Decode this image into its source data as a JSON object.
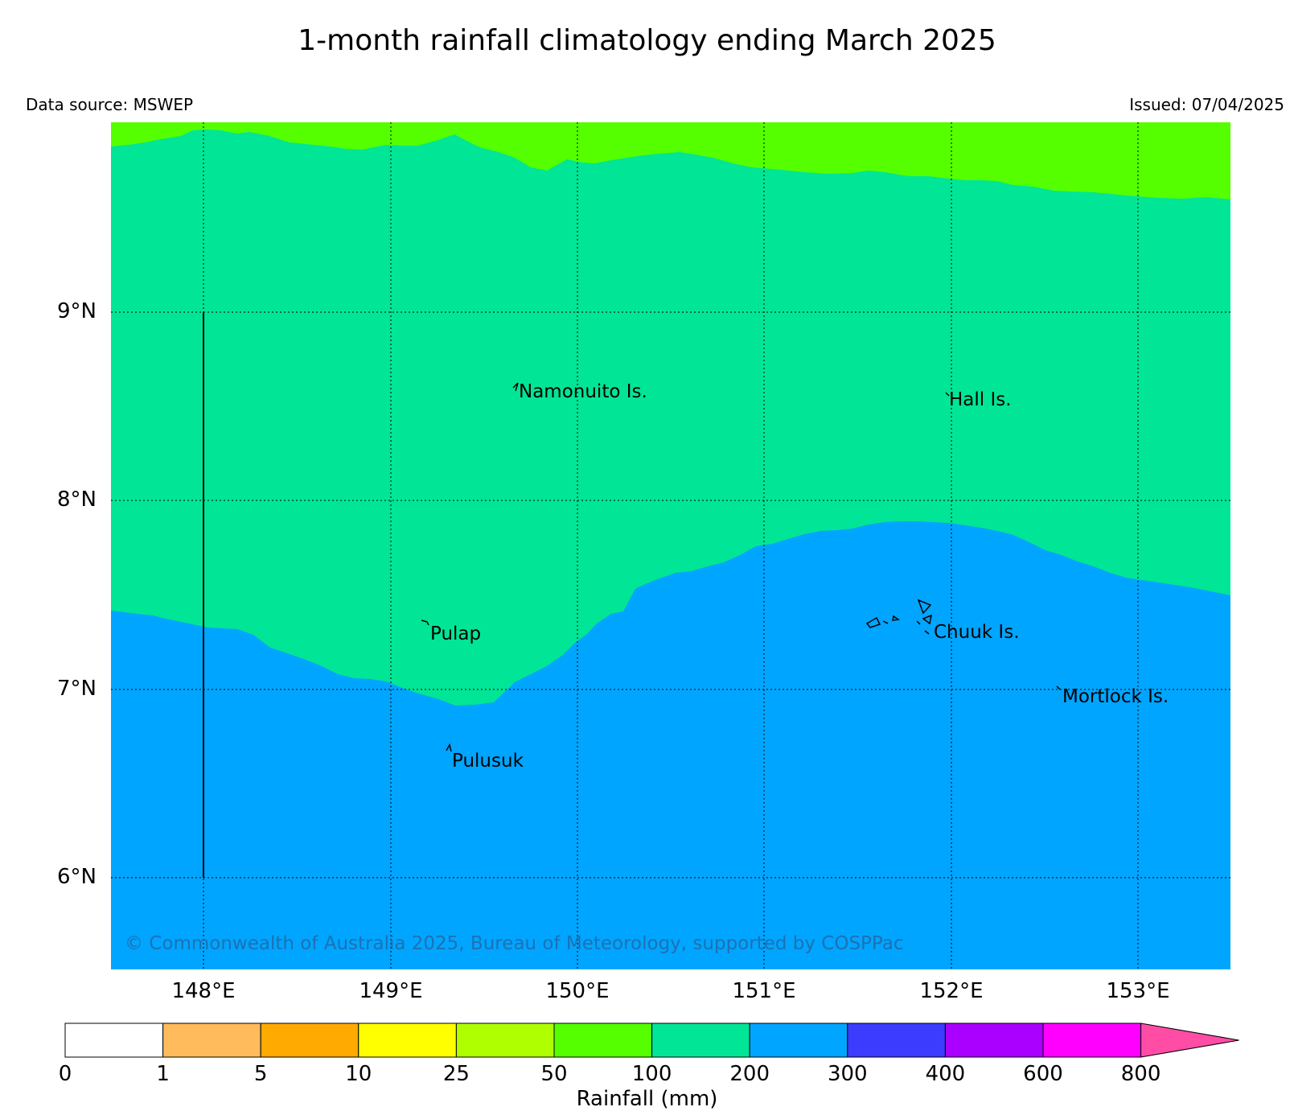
{
  "title": "1-month rainfall climatology ending March 2025",
  "data_source": "Data source: MSWEP",
  "issued": "Issued: 07/04/2025",
  "copyright": "© Commonwealth of Australia 2025, Bureau of Meteorology, supported by COSPPac",
  "lat_labels": [
    "9°N",
    "8°N",
    "7°N",
    "6°N"
  ],
  "lon_labels": [
    "148°E",
    "149°E",
    "150°E",
    "151°E",
    "152°E",
    "153°E"
  ],
  "places": {
    "namonuito": "Namonuito Is.",
    "hall": "Hall Is.",
    "pulap": "Pulap",
    "chuuk": "Chuuk Is.",
    "mortlock": "Mortlock Is.",
    "pulusuk": "Pulusuk"
  },
  "colorbar": {
    "title": "Rainfall (mm)",
    "ticks": [
      "0",
      "1",
      "5",
      "10",
      "25",
      "50",
      "100",
      "200",
      "300",
      "400",
      "600",
      "800"
    ],
    "colors": [
      "#ffffff",
      "#ffbb5c",
      "#ffaa00",
      "#ffff00",
      "#b0ff00",
      "#55ff00",
      "#00e696",
      "#00a5ff",
      "#3c3cff",
      "#aa00ff",
      "#ff00ff",
      "#ff4da6"
    ]
  },
  "legend_colors": {
    "band_50_100": "#55ff00",
    "band_100_200": "#00e696",
    "band_200_300": "#00a5ff"
  }
}
